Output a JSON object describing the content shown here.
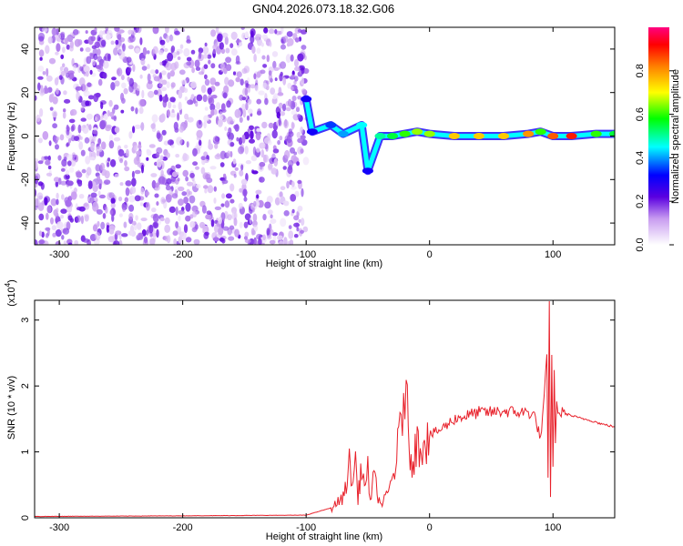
{
  "title": "GN04.2026.073.18.32.G06",
  "chart_data": [
    {
      "type": "heatmap",
      "xlabel": "Height of straight line (km)",
      "ylabel": "Frequency (Hz)",
      "xlim": [
        -320,
        150
      ],
      "ylim": [
        -50,
        50
      ],
      "xticks": [
        -300,
        -200,
        -100,
        0,
        100
      ],
      "yticks": [
        -40,
        -20,
        0,
        20,
        40
      ],
      "colorbar": {
        "label": "Normalized spectral amplitude",
        "range": [
          0,
          1
        ],
        "ticks": [
          "0.0",
          "0.2",
          "0.4",
          "0.6",
          "0.8"
        ],
        "colors": [
          "#ffffff",
          "#8a2be2",
          "#0000ff",
          "#00ffff",
          "#00ff00",
          "#ffff00",
          "#ff8000",
          "#ff0000",
          "#ff0080"
        ]
      },
      "noise_region": {
        "x_from": -320,
        "x_to": -100,
        "amplitude": 0.2
      },
      "signal_track": [
        {
          "x": -100,
          "freq": 17,
          "amp": 0.3
        },
        {
          "x": -95,
          "freq": 2,
          "amp": 0.3
        },
        {
          "x": -80,
          "freq": 5,
          "amp": 0.35
        },
        {
          "x": -70,
          "freq": 1,
          "amp": 0.4
        },
        {
          "x": -55,
          "freq": 5,
          "amp": 0.45
        },
        {
          "x": -50,
          "freq": -16,
          "amp": 0.3
        },
        {
          "x": -40,
          "freq": 0,
          "amp": 0.5
        },
        {
          "x": -30,
          "freq": 0,
          "amp": 0.55
        },
        {
          "x": -20,
          "freq": 1,
          "amp": 0.6
        },
        {
          "x": -10,
          "freq": 2,
          "amp": 0.65
        },
        {
          "x": 0,
          "freq": 1,
          "amp": 0.65
        },
        {
          "x": 20,
          "freq": 0,
          "amp": 0.75
        },
        {
          "x": 40,
          "freq": 0,
          "amp": 0.75
        },
        {
          "x": 60,
          "freq": 0,
          "amp": 0.75
        },
        {
          "x": 80,
          "freq": 1,
          "amp": 0.8
        },
        {
          "x": 90,
          "freq": 2,
          "amp": 0.6
        },
        {
          "x": 100,
          "freq": 0,
          "amp": 0.85
        },
        {
          "x": 115,
          "freq": 0,
          "amp": 0.9
        },
        {
          "x": 135,
          "freq": 1,
          "amp": 0.6
        },
        {
          "x": 150,
          "freq": 1,
          "amp": 0.55
        }
      ]
    },
    {
      "type": "line",
      "xlabel": "Height of straight line (km)",
      "ylabel": "SNR (10 * v/v)",
      "yscale_label": "(x10",
      "yscale_exponent": "4",
      "xlim": [
        -320,
        150
      ],
      "ylim": [
        0,
        3.3
      ],
      "xticks": [
        -300,
        -200,
        -100,
        0,
        100
      ],
      "yticks": [
        0,
        1,
        2,
        3
      ],
      "color": "#e8202a",
      "x": [
        -320,
        -200,
        -100,
        -80,
        -70,
        -65,
        -62,
        -60,
        -58,
        -55,
        -52,
        -50,
        -48,
        -45,
        -40,
        -35,
        -30,
        -25,
        -23,
        -21,
        -20,
        -18,
        -15,
        -10,
        -5,
        0,
        10,
        20,
        30,
        40,
        50,
        60,
        70,
        80,
        85,
        90,
        93,
        95,
        96,
        97,
        98,
        99,
        100,
        101,
        102,
        103,
        105,
        110,
        120,
        130,
        140,
        150
      ],
      "y": [
        0.02,
        0.03,
        0.04,
        0.15,
        0.3,
        0.8,
        0.5,
        0.9,
        0.3,
        0.8,
        0.4,
        0.7,
        0.3,
        0.6,
        0.2,
        0.3,
        0.6,
        1.1,
        1.4,
        1.9,
        2.2,
        1.5,
        0.9,
        1.1,
        1.2,
        1.25,
        1.35,
        1.5,
        1.55,
        1.6,
        1.6,
        1.62,
        1.6,
        1.6,
        1.55,
        1.2,
        1.8,
        2.4,
        0.6,
        3.3,
        0.3,
        2.6,
        0.8,
        2.2,
        1.1,
        1.7,
        1.6,
        1.58,
        1.52,
        1.48,
        1.42,
        1.38
      ]
    }
  ]
}
